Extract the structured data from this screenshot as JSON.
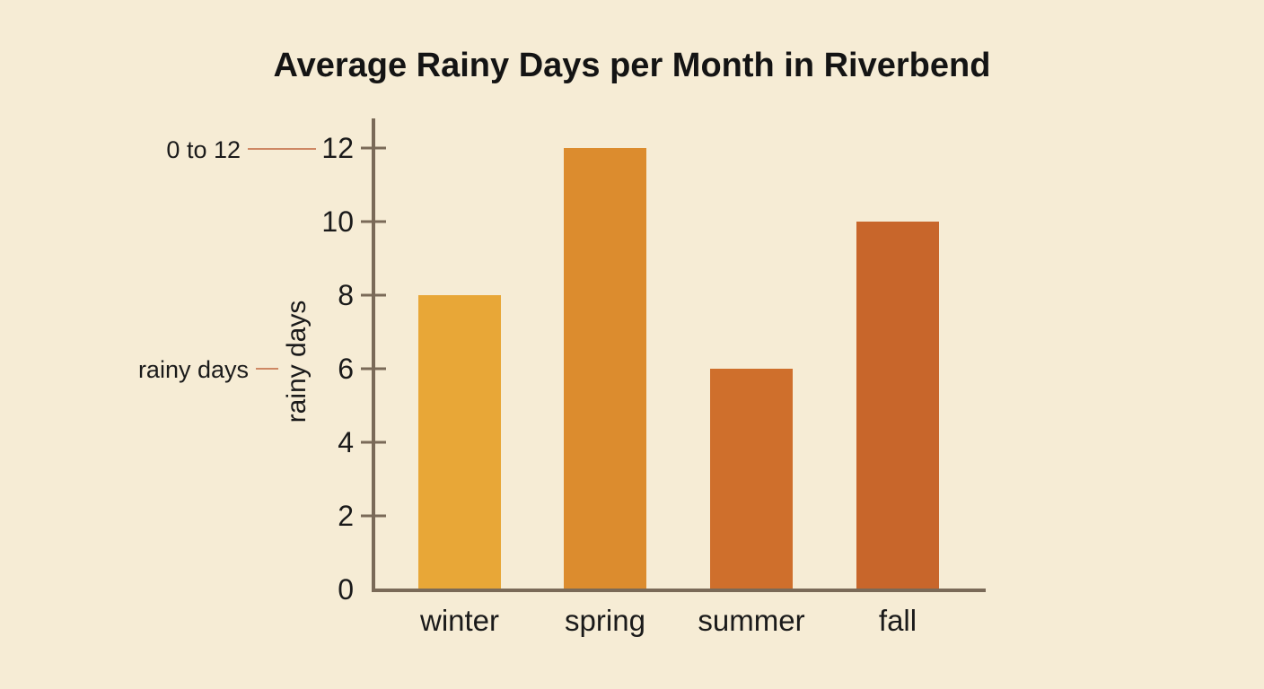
{
  "chart_data": {
    "type": "bar",
    "title": "Average Rainy Days per Month in Riverbend",
    "ylabel": "rainy days",
    "xlabel": "",
    "categories": [
      "winter",
      "spring",
      "summer",
      "fall"
    ],
    "values": [
      8,
      12,
      6,
      10
    ],
    "ylim": [
      0,
      12
    ],
    "yticks": [
      0,
      2,
      4,
      6,
      8,
      10,
      12
    ],
    "grid": false,
    "bar_colors": [
      "#e8a737",
      "#dc8c2e",
      "#cf6f2c",
      "#c8662b"
    ],
    "axis_color": "#7a6a58",
    "callout_color": "#c0663f",
    "annotations": [
      {
        "text": "0 to 12",
        "points_to": "y-axis top tick"
      },
      {
        "text": "rainy days",
        "points_to": "y-axis label"
      }
    ]
  }
}
